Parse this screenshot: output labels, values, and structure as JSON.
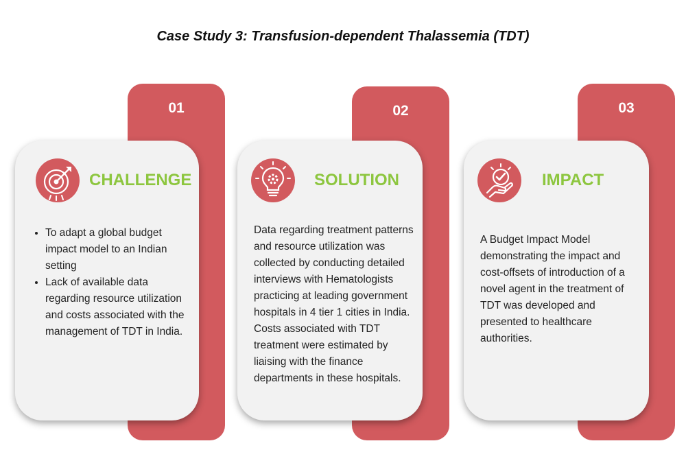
{
  "title": "Case Study 3: Transfusion-dependent Thalassemia (TDT)",
  "colors": {
    "accent": "#d25a5e",
    "heading": "#8dc63f",
    "card": "#f2f2f2"
  },
  "cards": [
    {
      "number": "01",
      "heading": "CHALLENGE",
      "icon": "target-icon",
      "bullets": [
        "To adapt a global budget impact model to an Indian setting",
        "Lack of available data regarding resource utilization and costs associated with the management of TDT in India."
      ]
    },
    {
      "number": "02",
      "heading": "SOLUTION",
      "icon": "lightbulb-gear-icon",
      "text": "Data regarding treatment patterns and resource utilization was collected by conducting detailed interviews with Hematologists practicing at leading government hospitals in 4 tier 1 cities in India. Costs associated with TDT treatment were estimated by liaising with the finance departments in  these hospitals."
    },
    {
      "number": "03",
      "heading": "IMPACT",
      "icon": "hand-check-icon",
      "text": "A Budget Impact Model demonstrating the impact and cost-offsets of introduction of a novel agent  in the treatment of TDT was developed and presented to healthcare authorities."
    }
  ]
}
